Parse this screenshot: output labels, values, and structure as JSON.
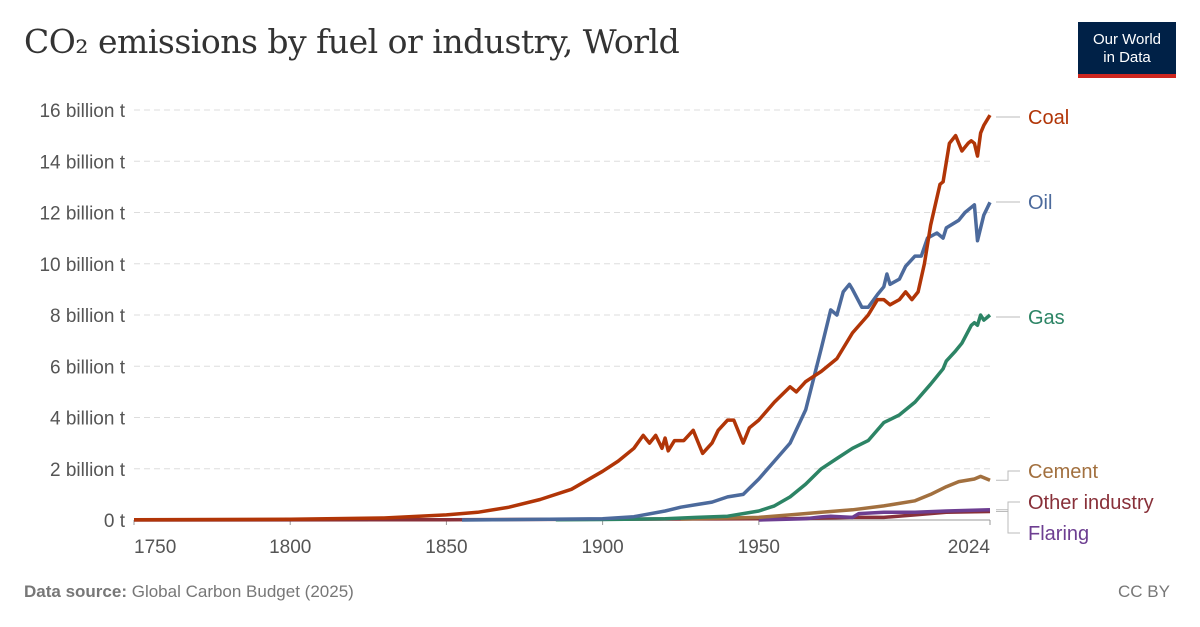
{
  "title": "CO₂ emissions by fuel or industry, World",
  "logo": {
    "line1": "Our World",
    "line2": "in Data"
  },
  "footer": {
    "source_label": "Data source:",
    "source": "Global Carbon Budget (2025)",
    "license": "CC BY"
  },
  "chart_data": {
    "type": "line",
    "title": "CO₂ emissions by fuel or industry, World",
    "xlim": [
      1750,
      2024
    ],
    "ylim": [
      0,
      16
    ],
    "x_ticks": [
      1750,
      1800,
      1850,
      1900,
      1950,
      2024
    ],
    "y_ticks": [
      0,
      2,
      4,
      6,
      8,
      10,
      12,
      14,
      16
    ],
    "y_tick_labels": [
      "0 t",
      "2 billion t",
      "4 billion t",
      "6 billion t",
      "8 billion t",
      "10 billion t",
      "12 billion t",
      "14 billion t",
      "16 billion t"
    ],
    "grid": "horizontal dashed",
    "legend": "right, line-end labels",
    "unit": "billion t",
    "series": [
      {
        "name": "Coal",
        "color": "#b13507",
        "points": [
          [
            1750,
            0.01
          ],
          [
            1800,
            0.03
          ],
          [
            1830,
            0.08
          ],
          [
            1850,
            0.2
          ],
          [
            1860,
            0.3
          ],
          [
            1870,
            0.5
          ],
          [
            1880,
            0.8
          ],
          [
            1890,
            1.2
          ],
          [
            1900,
            1.9
          ],
          [
            1905,
            2.3
          ],
          [
            1910,
            2.8
          ],
          [
            1913,
            3.3
          ],
          [
            1915,
            3.0
          ],
          [
            1917,
            3.3
          ],
          [
            1919,
            2.8
          ],
          [
            1920,
            3.2
          ],
          [
            1921,
            2.7
          ],
          [
            1923,
            3.1
          ],
          [
            1926,
            3.1
          ],
          [
            1929,
            3.5
          ],
          [
            1932,
            2.6
          ],
          [
            1935,
            3.0
          ],
          [
            1937,
            3.5
          ],
          [
            1940,
            3.9
          ],
          [
            1942,
            3.9
          ],
          [
            1945,
            3.0
          ],
          [
            1947,
            3.6
          ],
          [
            1950,
            3.9
          ],
          [
            1955,
            4.6
          ],
          [
            1960,
            5.2
          ],
          [
            1962,
            5.0
          ],
          [
            1965,
            5.4
          ],
          [
            1970,
            5.8
          ],
          [
            1975,
            6.3
          ],
          [
            1980,
            7.3
          ],
          [
            1985,
            8.0
          ],
          [
            1988,
            8.6
          ],
          [
            1990,
            8.6
          ],
          [
            1992,
            8.4
          ],
          [
            1995,
            8.6
          ],
          [
            1997,
            8.9
          ],
          [
            1999,
            8.6
          ],
          [
            2001,
            8.9
          ],
          [
            2003,
            10.0
          ],
          [
            2005,
            11.5
          ],
          [
            2008,
            13.1
          ],
          [
            2009,
            13.2
          ],
          [
            2011,
            14.7
          ],
          [
            2013,
            15.0
          ],
          [
            2015,
            14.4
          ],
          [
            2017,
            14.7
          ],
          [
            2018,
            14.8
          ],
          [
            2019,
            14.7
          ],
          [
            2020,
            14.2
          ],
          [
            2021,
            15.1
          ],
          [
            2022,
            15.4
          ],
          [
            2024,
            15.8
          ]
        ]
      },
      {
        "name": "Oil",
        "color": "#4c6a9c",
        "points": [
          [
            1855,
            0.0
          ],
          [
            1900,
            0.05
          ],
          [
            1910,
            0.13
          ],
          [
            1920,
            0.35
          ],
          [
            1925,
            0.5
          ],
          [
            1930,
            0.6
          ],
          [
            1935,
            0.7
          ],
          [
            1940,
            0.9
          ],
          [
            1945,
            1.0
          ],
          [
            1950,
            1.6
          ],
          [
            1955,
            2.3
          ],
          [
            1960,
            3.0
          ],
          [
            1965,
            4.3
          ],
          [
            1970,
            6.7
          ],
          [
            1973,
            8.2
          ],
          [
            1975,
            8.0
          ],
          [
            1977,
            8.9
          ],
          [
            1979,
            9.2
          ],
          [
            1980,
            9.0
          ],
          [
            1983,
            8.3
          ],
          [
            1985,
            8.3
          ],
          [
            1988,
            8.8
          ],
          [
            1990,
            9.1
          ],
          [
            1991,
            9.6
          ],
          [
            1992,
            9.2
          ],
          [
            1995,
            9.4
          ],
          [
            1997,
            9.9
          ],
          [
            2000,
            10.3
          ],
          [
            2002,
            10.3
          ],
          [
            2004,
            11.0
          ],
          [
            2007,
            11.2
          ],
          [
            2009,
            11.0
          ],
          [
            2010,
            11.4
          ],
          [
            2014,
            11.7
          ],
          [
            2016,
            12.0
          ],
          [
            2019,
            12.3
          ],
          [
            2020,
            10.9
          ],
          [
            2022,
            11.9
          ],
          [
            2024,
            12.4
          ]
        ]
      },
      {
        "name": "Gas",
        "color": "#2c8465",
        "points": [
          [
            1885,
            0.01
          ],
          [
            1900,
            0.02
          ],
          [
            1920,
            0.05
          ],
          [
            1930,
            0.1
          ],
          [
            1940,
            0.15
          ],
          [
            1950,
            0.35
          ],
          [
            1955,
            0.55
          ],
          [
            1960,
            0.9
          ],
          [
            1965,
            1.4
          ],
          [
            1970,
            2.0
          ],
          [
            1975,
            2.4
          ],
          [
            1980,
            2.8
          ],
          [
            1985,
            3.1
          ],
          [
            1990,
            3.8
          ],
          [
            1995,
            4.1
          ],
          [
            2000,
            4.6
          ],
          [
            2005,
            5.3
          ],
          [
            2009,
            5.9
          ],
          [
            2010,
            6.2
          ],
          [
            2013,
            6.6
          ],
          [
            2015,
            6.9
          ],
          [
            2018,
            7.6
          ],
          [
            2019,
            7.7
          ],
          [
            2020,
            7.6
          ],
          [
            2021,
            8.0
          ],
          [
            2022,
            7.8
          ],
          [
            2023,
            7.9
          ],
          [
            2024,
            8.0
          ]
        ]
      },
      {
        "name": "Cement",
        "color": "#a2703f",
        "points": [
          [
            1925,
            0.04
          ],
          [
            1950,
            0.1
          ],
          [
            1960,
            0.2
          ],
          [
            1970,
            0.3
          ],
          [
            1980,
            0.4
          ],
          [
            1990,
            0.55
          ],
          [
            2000,
            0.75
          ],
          [
            2005,
            1.0
          ],
          [
            2010,
            1.3
          ],
          [
            2014,
            1.5
          ],
          [
            2019,
            1.6
          ],
          [
            2021,
            1.7
          ],
          [
            2024,
            1.55
          ]
        ]
      },
      {
        "name": "Other industry",
        "color": "#883039",
        "points": [
          [
            1750,
            0.0
          ],
          [
            1850,
            0.01
          ],
          [
            1960,
            0.05
          ],
          [
            1980,
            0.1
          ],
          [
            1990,
            0.1
          ],
          [
            2000,
            0.2
          ],
          [
            2010,
            0.3
          ],
          [
            2024,
            0.33
          ]
        ]
      },
      {
        "name": "Flaring",
        "color": "#6d3e91",
        "points": [
          [
            1950,
            0.0
          ],
          [
            1965,
            0.05
          ],
          [
            1970,
            0.12
          ],
          [
            1973,
            0.15
          ],
          [
            1980,
            0.1
          ],
          [
            1982,
            0.25
          ],
          [
            1990,
            0.3
          ],
          [
            2000,
            0.3
          ],
          [
            2010,
            0.35
          ],
          [
            2024,
            0.4
          ]
        ]
      }
    ]
  }
}
